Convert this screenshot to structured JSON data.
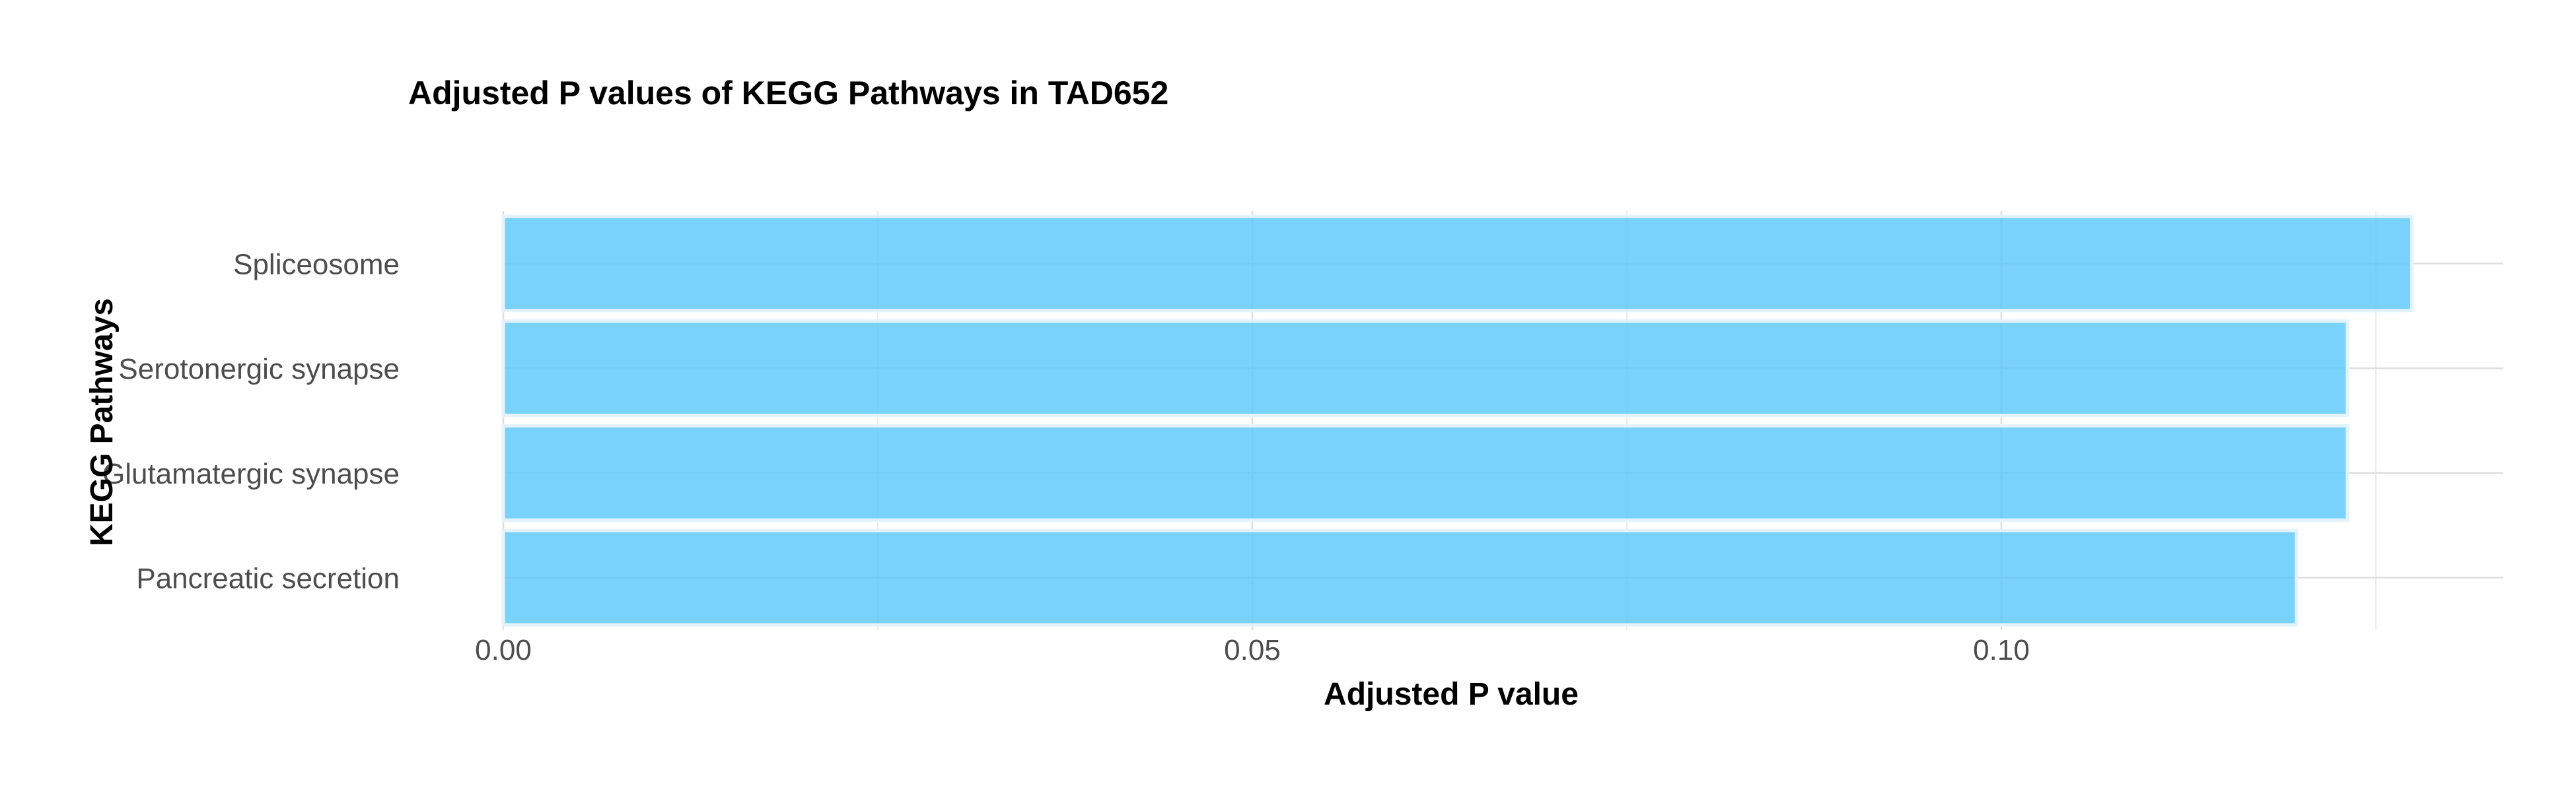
{
  "chart_data": {
    "type": "bar",
    "orientation": "horizontal",
    "title": "Adjusted P values of KEGG Pathways in TAD652",
    "xlabel": "Adjusted P value",
    "ylabel": "KEGG Pathways",
    "categories": [
      "Spliceosome",
      "Serotonergic synapse",
      "Glutamatergic synapse",
      "Pancreatic secretion"
    ],
    "values": [
      0.1274,
      0.1231,
      0.1231,
      0.1197
    ],
    "xlim": [
      0,
      0.134
    ],
    "xticks": [
      0.0,
      0.05,
      0.1
    ],
    "xtick_labels": [
      "0.00",
      "0.05",
      "0.10"
    ],
    "grid": true,
    "bar_color": "#5bc8fb",
    "legend": "none"
  }
}
